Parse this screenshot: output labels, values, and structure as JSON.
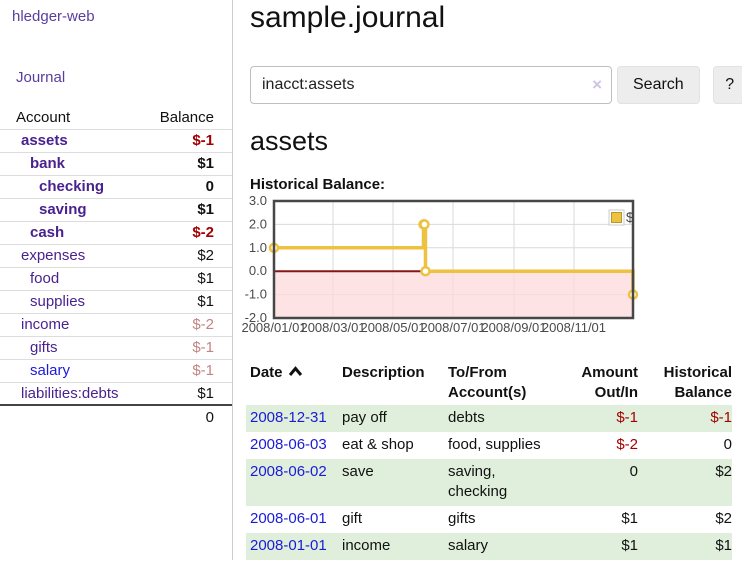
{
  "app": {
    "brand": "hledger-web",
    "nav_journal": "Journal"
  },
  "sidebar": {
    "header": {
      "account": "Account",
      "balance": "Balance"
    },
    "accounts": [
      {
        "name": "assets",
        "indent": 1,
        "bold": true,
        "balance": "$-1",
        "balance_style": "negative"
      },
      {
        "name": "bank",
        "indent": 2,
        "bold": true,
        "balance": "$1",
        "balance_style": "positive"
      },
      {
        "name": "checking",
        "indent": 3,
        "bold": true,
        "balance": "0",
        "balance_style": "positive"
      },
      {
        "name": "saving",
        "indent": 3,
        "bold": true,
        "balance": "$1",
        "balance_style": "positive"
      },
      {
        "name": "cash",
        "indent": 2,
        "bold": true,
        "balance": "$-2",
        "balance_style": "negative"
      },
      {
        "name": "expenses",
        "indent": 1,
        "bold": false,
        "balance": "$2",
        "balance_style": "positive"
      },
      {
        "name": "food",
        "indent": 2,
        "bold": false,
        "balance": "$1",
        "balance_style": "positive"
      },
      {
        "name": "supplies",
        "indent": 2,
        "bold": false,
        "balance": "$1",
        "balance_style": "positive"
      },
      {
        "name": "income",
        "indent": 1,
        "bold": false,
        "balance": "$-2",
        "balance_style": "muted-negative"
      },
      {
        "name": "gifts",
        "indent": 2,
        "bold": false,
        "balance": "$-1",
        "balance_style": "muted-negative"
      },
      {
        "name": "salary",
        "indent": 2,
        "bold": false,
        "balance": "$-1",
        "balance_style": "muted-negative",
        "link_color": "blue"
      },
      {
        "name": "liabilities:debts",
        "indent": 1,
        "bold": false,
        "balance": "$1",
        "balance_style": "positive"
      }
    ],
    "total": "0"
  },
  "header": {
    "title": "sample.journal"
  },
  "search": {
    "value": "inacct:assets",
    "clear_icon": "×",
    "button": "Search",
    "help_button": "?"
  },
  "main": {
    "account_title": "assets",
    "chart_label": "Historical Balance:"
  },
  "chart_data": {
    "type": "line",
    "step": true,
    "title": "Historical Balance",
    "series": [
      {
        "name": "$",
        "color": "#edc240",
        "points": [
          [
            "2008-01-01",
            1
          ],
          [
            "2008-06-01",
            2
          ],
          [
            "2008-06-02",
            2
          ],
          [
            "2008-06-03",
            0
          ],
          [
            "2008-12-31",
            -1
          ]
        ]
      }
    ],
    "x_range": [
      "2008-01-01",
      "2008-12-31"
    ],
    "x_ticks": [
      {
        "date": "2008-01-01",
        "label": "2008/01/01"
      },
      {
        "date": "2008-03-01",
        "label": "2008/03/01"
      },
      {
        "date": "2008-05-01",
        "label": "2008/05/01"
      },
      {
        "date": "2008-07-01",
        "label": "2008/07/01"
      },
      {
        "date": "2008-09-01",
        "label": "2008/09/01"
      },
      {
        "date": "2008-11-01",
        "label": "2008/11/01"
      }
    ],
    "y_ticks": [
      3.0,
      2.0,
      1.0,
      0.0,
      -1.0,
      -2.0
    ],
    "ylim": [
      -2,
      3
    ],
    "grid": true,
    "legend": {
      "label": "$",
      "position": "top-right"
    },
    "negative_region_color": "#fcdada",
    "zero_line_color": "#8a1414",
    "border_color": "#474747"
  },
  "register": {
    "headers": {
      "date": "Date",
      "description": "Description",
      "accounts": "To/From Account(s)",
      "amount": "Amount Out/In",
      "balance": "Historical Balance"
    },
    "rows": [
      {
        "date": "2008-12-31",
        "description": "pay off",
        "accounts": "debts",
        "amount": "$-1",
        "balance": "$-1"
      },
      {
        "date": "2008-06-03",
        "description": "eat & shop",
        "accounts": "food, supplies",
        "amount": "$-2",
        "balance": "0"
      },
      {
        "date": "2008-06-02",
        "description": "save",
        "accounts": "saving, checking",
        "amount": "0",
        "balance": "$2"
      },
      {
        "date": "2008-06-01",
        "description": "gift",
        "accounts": "gifts",
        "amount": "$1",
        "balance": "$2"
      },
      {
        "date": "2008-01-01",
        "description": "income",
        "accounts": "salary",
        "amount": "$1",
        "balance": "$1"
      }
    ]
  }
}
